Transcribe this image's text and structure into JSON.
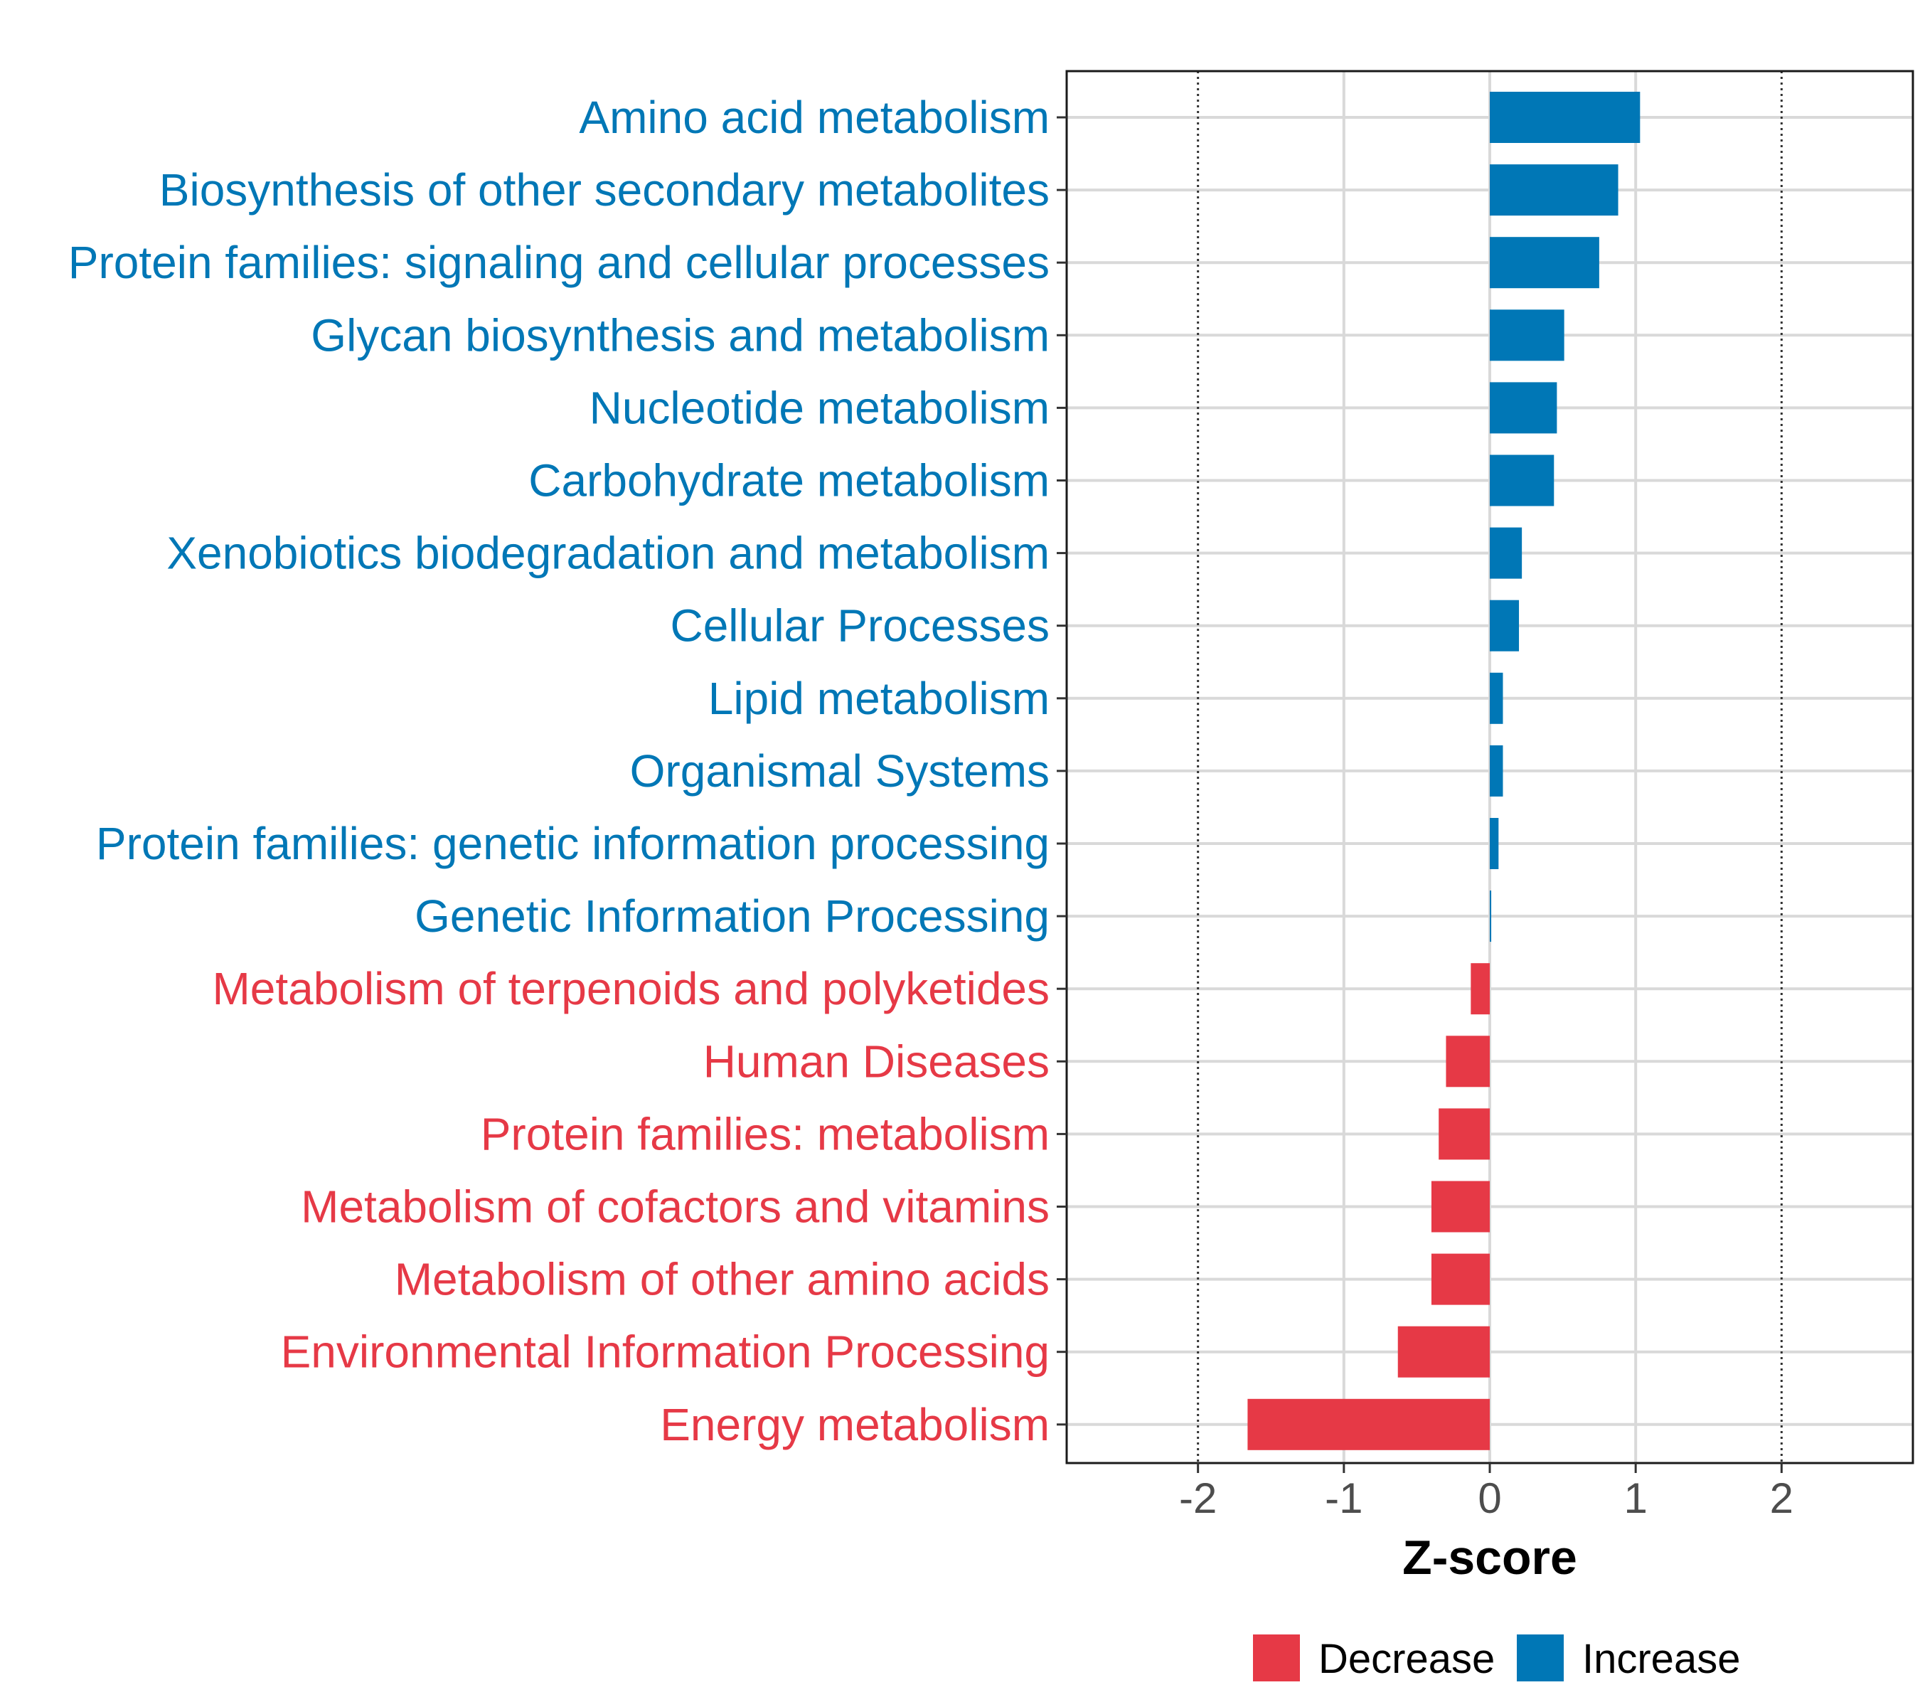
{
  "chart_data": {
    "type": "bar",
    "orientation": "horizontal",
    "xlabel": "Z-score",
    "xlim": [
      -2.9,
      2.9
    ],
    "xticks": [
      "-2",
      "-1",
      "0",
      "1",
      "2"
    ],
    "xtick_values": [
      -2,
      -1,
      0,
      1,
      2
    ],
    "reference_lines": [
      -2,
      2
    ],
    "grid": true,
    "legend_position": "bottom",
    "colors": {
      "Decrease": "#e63946",
      "Increase": "#0077b6"
    },
    "legend": [
      {
        "name": "Decrease",
        "color": "#e63946"
      },
      {
        "name": "Increase",
        "color": "#0077b6"
      }
    ],
    "categories": [
      "Amino acid metabolism",
      "Biosynthesis of other secondary metabolites",
      "Protein families: signaling and cellular processes",
      "Glycan biosynthesis and metabolism",
      "Nucleotide metabolism",
      "Carbohydrate metabolism",
      "Xenobiotics biodegradation and metabolism",
      "Cellular Processes",
      "Lipid metabolism",
      "Organismal Systems",
      "Protein families: genetic information processing",
      "Genetic Information Processing",
      "Metabolism of terpenoids and polyketides",
      "Human Diseases",
      "Protein families: metabolism",
      "Metabolism of cofactors and vitamins",
      "Metabolism of other amino acids",
      "Environmental Information Processing",
      "Energy metabolism"
    ],
    "values": [
      1.03,
      0.88,
      0.75,
      0.51,
      0.46,
      0.44,
      0.22,
      0.2,
      0.09,
      0.09,
      0.06,
      0.01,
      -0.13,
      -0.3,
      -0.35,
      -0.4,
      -0.4,
      -0.63,
      -1.66
    ],
    "groups": [
      "Increase",
      "Increase",
      "Increase",
      "Increase",
      "Increase",
      "Increase",
      "Increase",
      "Increase",
      "Increase",
      "Increase",
      "Increase",
      "Increase",
      "Decrease",
      "Decrease",
      "Decrease",
      "Decrease",
      "Decrease",
      "Decrease",
      "Decrease"
    ]
  }
}
